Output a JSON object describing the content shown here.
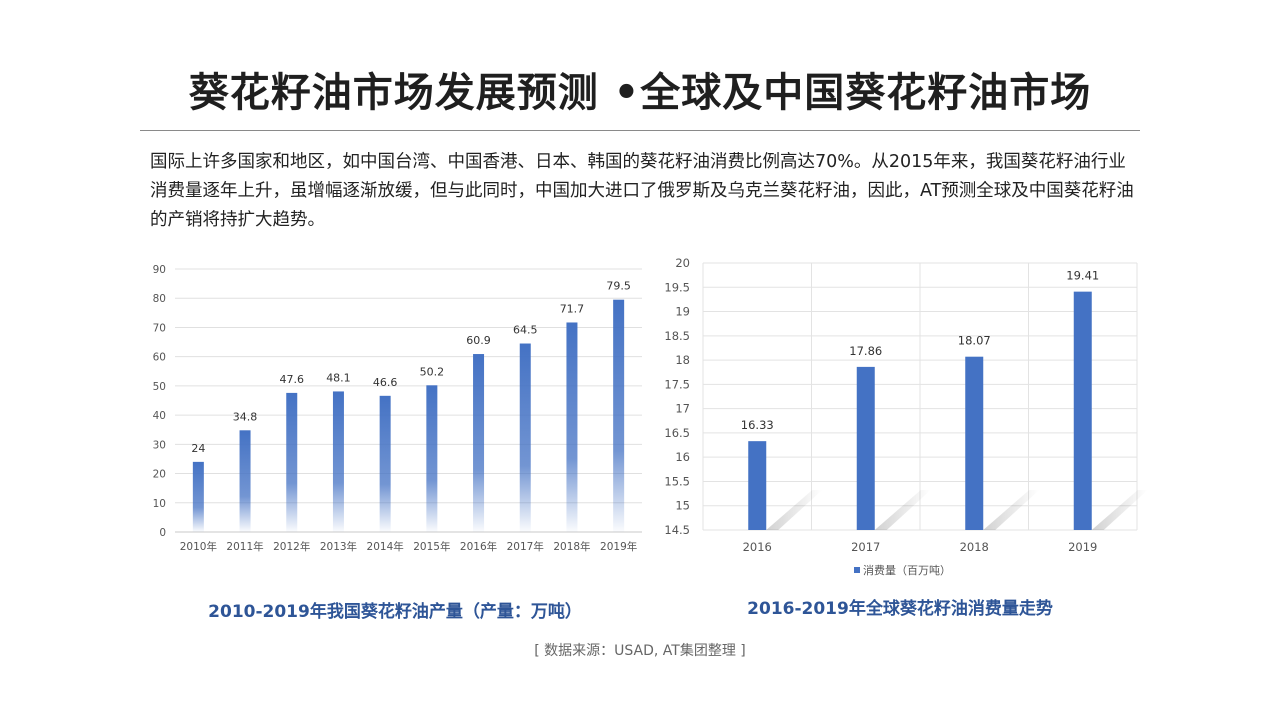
{
  "header": {
    "title": "葵花籽油市场发展预测  •全球及中国葵花籽油市场",
    "intro": "国际上许多国家和地区，如中国台湾、中国香港、日本、韩国的葵花籽油消费比例高达70%。从2015年来，我国葵花籽油行业消费量逐年上升，虽增幅逐渐放缓，但与此同时，中国加大进口了俄罗斯及乌克兰葵花籽油，因此，AT预测全球及中国葵花籽油的产销将持扩大趋势。"
  },
  "chart_data": [
    {
      "type": "bar",
      "title": "2010-2019年我国葵花籽油产量（产量：万吨）",
      "categories": [
        "2010年",
        "2011年",
        "2012年",
        "2013年",
        "2014年",
        "2015年",
        "2016年",
        "2017年",
        "2018年",
        "2019年"
      ],
      "values": [
        24,
        34.8,
        47.6,
        48.1,
        46.6,
        50.2,
        60.9,
        64.5,
        71.7,
        79.5
      ],
      "data_labels": [
        "24",
        "34.8",
        "47.6",
        "48.1",
        "46.6",
        "50.2",
        "60.9",
        "64.5",
        "71.7",
        "79.5"
      ],
      "ylim": [
        0,
        90
      ],
      "yticks": [
        "0",
        "10",
        "20",
        "30",
        "40",
        "50",
        "60",
        "70",
        "80",
        "90"
      ],
      "grid": true,
      "color": "#4472c4",
      "legend": false
    },
    {
      "type": "bar",
      "title": "2016-2019年全球葵花籽油消费量走势",
      "categories": [
        "2016",
        "2017",
        "2018",
        "2019"
      ],
      "series": [
        {
          "name": "消费量（百万吨）",
          "values": [
            16.33,
            17.86,
            18.07,
            19.41
          ]
        }
      ],
      "data_labels": [
        "16.33",
        "17.86",
        "18.07",
        "19.41"
      ],
      "ylim": [
        14.5,
        20
      ],
      "yticks": [
        "14.5",
        "15",
        "15.5",
        "16",
        "16.5",
        "17",
        "17.5",
        "18",
        "18.5",
        "19",
        "19.5",
        "20"
      ],
      "grid": true,
      "color": "#4472c4",
      "legend": "bottom"
    }
  ],
  "footer": {
    "source": "[ 数据来源：USAD, AT集团整理 ]"
  }
}
